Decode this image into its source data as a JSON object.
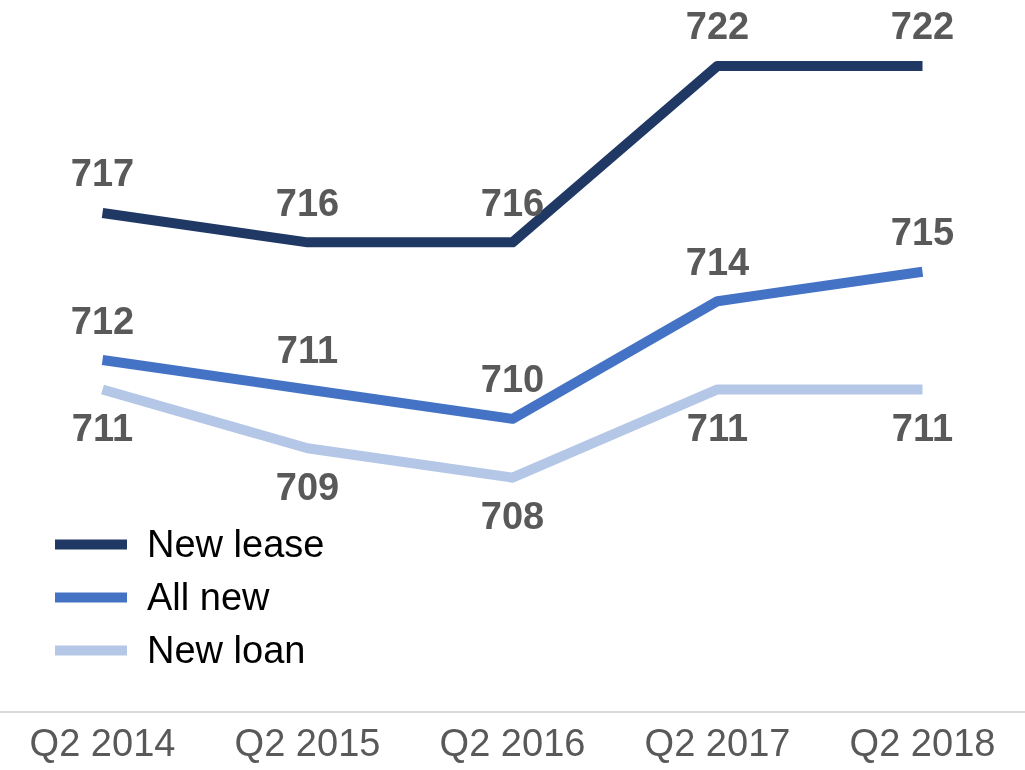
{
  "chart_data": {
    "type": "line",
    "categories": [
      "Q2 2014",
      "Q2 2015",
      "Q2 2016",
      "Q2 2017",
      "Q2 2018"
    ],
    "series": [
      {
        "name": "New lease",
        "color": "#203864",
        "values": [
          717,
          716,
          716,
          722,
          722
        ]
      },
      {
        "name": "All new",
        "color": "#4472c4",
        "values": [
          712,
          711,
          710,
          714,
          715
        ]
      },
      {
        "name": "New loan",
        "color": "#b4c7e7",
        "values": [
          711,
          709,
          708,
          711,
          711
        ]
      }
    ],
    "data_labels": true,
    "legend": "bottom left",
    "grid": false,
    "marker": "none",
    "line_style": "solid"
  }
}
